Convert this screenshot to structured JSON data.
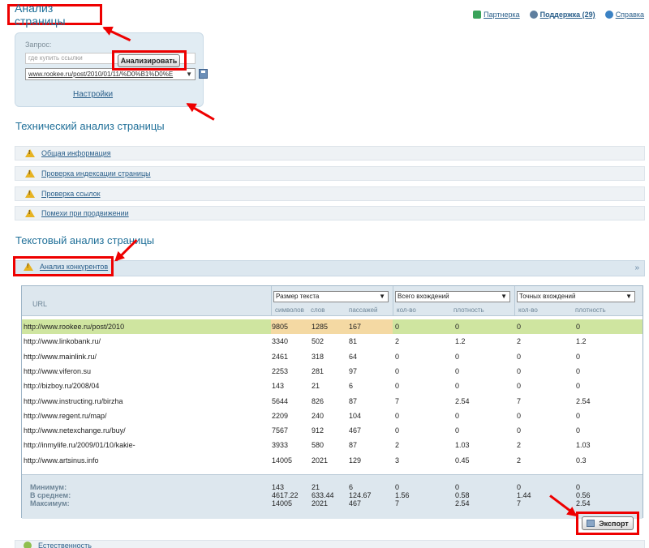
{
  "header": {
    "title": "Анализ страницы",
    "links": [
      {
        "label": "Партнерка",
        "icon": "partner-icon",
        "color": "#3aa35a"
      },
      {
        "label": "Поддержка (29)",
        "icon": "user-icon",
        "color": "#5f7f9f"
      },
      {
        "label": "Справка",
        "icon": "help-icon",
        "color": "#3a82c4"
      }
    ]
  },
  "query": {
    "label": "Запрос:",
    "placeholder": "где купить ссылки",
    "url_value": "www.rookee.ru/post/2010/01/11/%D0%B1%D0%E",
    "settings_label": "Настройки",
    "analyze_label": "Анализировать"
  },
  "technical": {
    "title": "Технический анализ страницы",
    "items": [
      "Общая информация",
      "Проверка индексации страницы",
      "Проверка ссылок",
      "Помехи при продвижении"
    ]
  },
  "textual": {
    "title": "Текстовый анализ страницы",
    "competitors_label": "Анализ конкурентов"
  },
  "table": {
    "url_header": "URL",
    "groups": [
      {
        "select": "Размер текста",
        "subheaders": [
          "символов",
          "слов",
          "пассажей"
        ]
      },
      {
        "select": "Всего вхождений",
        "subheaders": [
          "кол-во",
          "плотность"
        ]
      },
      {
        "select": "Точных вхождений",
        "subheaders": [
          "кол-во",
          "плотность"
        ]
      }
    ],
    "rows": [
      [
        "http://www.rookee.ru/post/2010",
        "9805",
        "1285",
        "167",
        "0",
        "0",
        "0",
        "0"
      ],
      [
        "http://www.linkobank.ru/",
        "3340",
        "502",
        "81",
        "2",
        "1.2",
        "2",
        "1.2"
      ],
      [
        "http://www.mainlink.ru/",
        "2461",
        "318",
        "64",
        "0",
        "0",
        "0",
        "0"
      ],
      [
        "http://www.viferon.su",
        "2253",
        "281",
        "97",
        "0",
        "0",
        "0",
        "0"
      ],
      [
        "http://bizboy.ru/2008/04",
        "143",
        "21",
        "6",
        "0",
        "0",
        "0",
        "0"
      ],
      [
        "http://www.instructing.ru/birzha",
        "5644",
        "826",
        "87",
        "7",
        "2.54",
        "7",
        "2.54"
      ],
      [
        "http://www.regent.ru/map/",
        "2209",
        "240",
        "104",
        "0",
        "0",
        "0",
        "0"
      ],
      [
        "http://www.netexchange.ru/buy/",
        "7567",
        "912",
        "467",
        "0",
        "0",
        "0",
        "0"
      ],
      [
        "http://inmylife.ru/2009/01/10/kakie-",
        "3933",
        "580",
        "87",
        "2",
        "1.03",
        "2",
        "1.03"
      ],
      [
        "http://www.artsinus.info",
        "14005",
        "2021",
        "129",
        "3",
        "0.45",
        "2",
        "0.3"
      ]
    ],
    "summary_labels": [
      "Минимум:",
      "В среднем:",
      "Максимум:"
    ],
    "summary": [
      [
        "143",
        "21",
        "6",
        "0",
        "0",
        "0",
        "0"
      ],
      [
        "4617.22",
        "633.44",
        "124.67",
        "1.56",
        "0.58",
        "1.44",
        "0.56"
      ],
      [
        "14005",
        "2021",
        "467",
        "7",
        "2.54",
        "7",
        "2.54"
      ]
    ],
    "highlight_color": "#cfe5a0",
    "size_highlight_color": "#f4d9a3"
  },
  "export_label": "Экспорт",
  "bottom_item": "Естественность"
}
